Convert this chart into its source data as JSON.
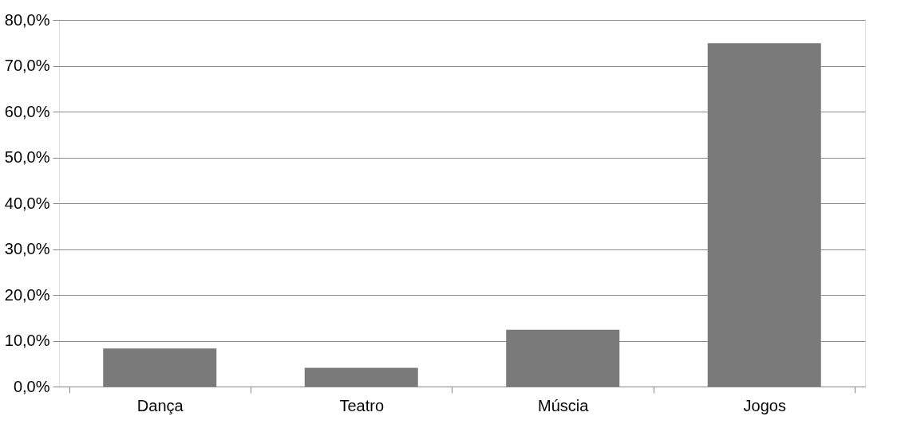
{
  "chart_data": {
    "type": "bar",
    "categories": [
      "Dança",
      "Teatro",
      "Múscia",
      "Jogos"
    ],
    "values": [
      8.3,
      4.1,
      12.4,
      74.9
    ],
    "color": "#7a7a7a",
    "ylim": [
      0,
      80
    ],
    "yticks": [
      {
        "value": 0,
        "label": "0,0%"
      },
      {
        "value": 10,
        "label": "10,0%"
      },
      {
        "value": 20,
        "label": "20,0%"
      },
      {
        "value": 30,
        "label": "30,0%"
      },
      {
        "value": 40,
        "label": "40,0%"
      },
      {
        "value": 50,
        "label": "50,0%"
      },
      {
        "value": 60,
        "label": "60,0%"
      },
      {
        "value": 70,
        "label": "70,0%"
      },
      {
        "value": 80,
        "label": "80,0%"
      }
    ],
    "grid": "y"
  }
}
